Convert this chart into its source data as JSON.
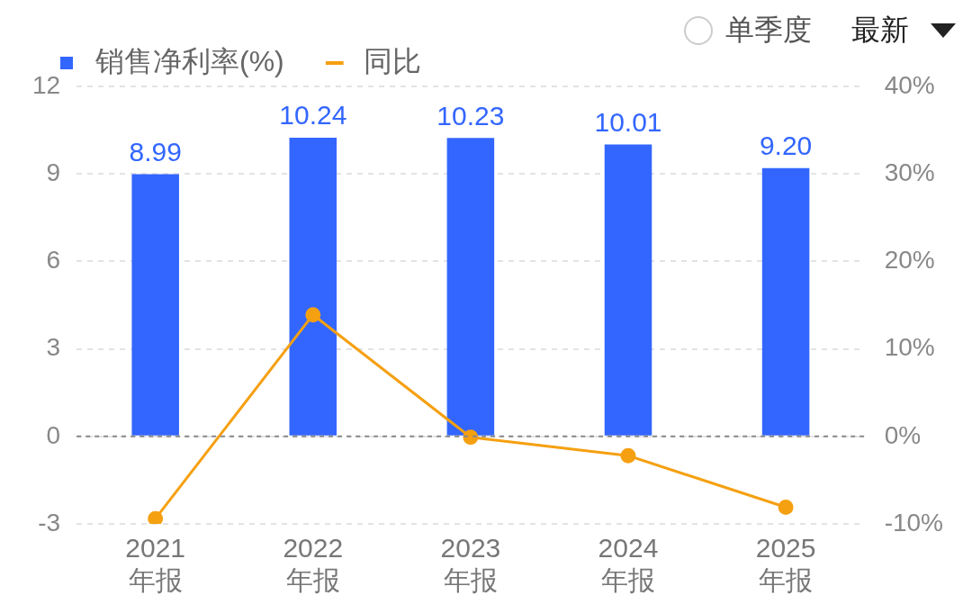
{
  "chart_data": {
    "type": "bar",
    "categories": [
      "2021\n年报",
      "2022\n年报",
      "2023\n年报",
      "2024\n年报",
      "2025\n年报"
    ],
    "series": [
      {
        "name": "销售净利率(%)",
        "color": "#3366ff",
        "values": [
          8.99,
          10.24,
          10.23,
          10.01,
          9.2
        ],
        "value_labels": [
          "8.99",
          "10.24",
          "10.23",
          "10.01",
          "9.20"
        ]
      },
      {
        "name": "同比",
        "type": "line",
        "axis": "y2",
        "color": "#f5a011",
        "marker": "circle",
        "values": [
          -9.4,
          13.9,
          -0.1,
          -2.2,
          -8.1
        ]
      }
    ],
    "ylim": [
      -3,
      12
    ],
    "yticks": [
      -3,
      0,
      3,
      6,
      9,
      12
    ],
    "y2lim": [
      -10,
      40
    ],
    "y2ticks": [
      {
        "value": -10,
        "label": "-10%"
      },
      {
        "value": 0,
        "label": "0%"
      },
      {
        "value": 10,
        "label": "10%"
      },
      {
        "value": 20,
        "label": "20%"
      },
      {
        "value": 30,
        "label": "30%"
      },
      {
        "value": 40,
        "label": "40%"
      }
    ],
    "ref_lines": [
      {
        "axis": "y",
        "value": 0,
        "color": "#888888",
        "line_style": "dashed"
      }
    ],
    "grid": "y",
    "legend": "top left",
    "annotations": [
      "单季度",
      "最新"
    ]
  }
}
